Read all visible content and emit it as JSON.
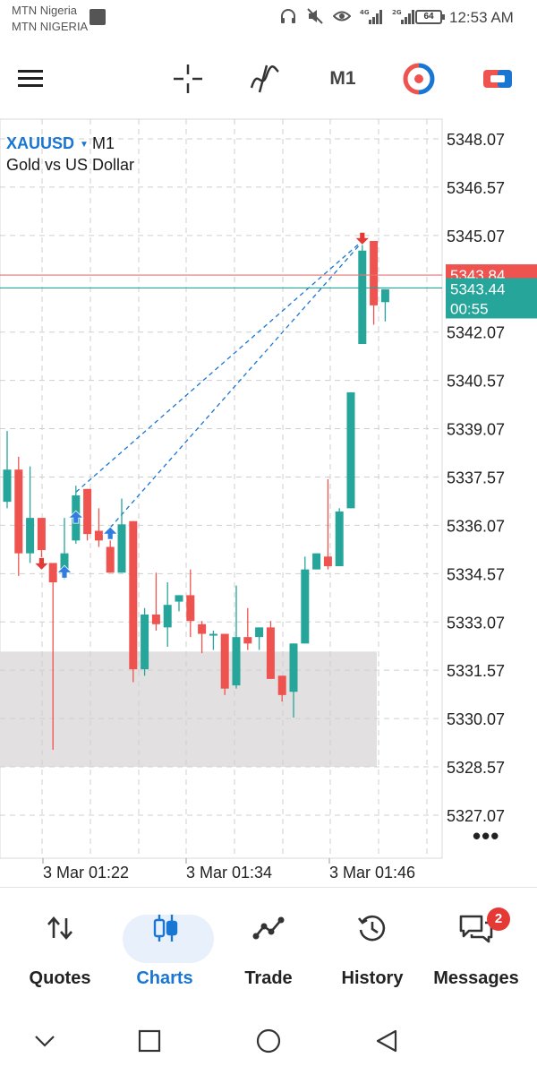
{
  "status_bar": {
    "carrier1": "MTN Nigeria",
    "carrier2": "MTN NIGERIA",
    "net1": "4G",
    "net2": "2G",
    "battery": "64",
    "time": "12:53 AM"
  },
  "toolbar": {
    "timeframe": "M1",
    "icons": [
      "menu-icon",
      "crosshair-icon",
      "indicators-icon",
      "one-click-trading-icon",
      "trade-icon"
    ]
  },
  "chart": {
    "symbol": "XAUUSD",
    "timeframe": "M1",
    "description": "Gold vs US Dollar",
    "price_labels": [
      "5348.07",
      "5346.57",
      "5345.07",
      "5342.07",
      "5340.57",
      "5339.07",
      "5337.57",
      "5336.07",
      "5334.57",
      "5333.07",
      "5331.57",
      "5330.07",
      "5328.57",
      "5327.07"
    ],
    "ask_price": "5343.84",
    "bid_price": "5343.44",
    "bar_countdown": "00:55",
    "time_labels": [
      "3 Mar 01:22",
      "3 Mar 01:34",
      "3 Mar 01:46"
    ],
    "colors": {
      "bull": "#26a69a",
      "bear": "#ef5350",
      "ask_line": "#e57373",
      "bid_line": "#26a69a",
      "zone": "#e2e0e0"
    }
  },
  "chart_data": {
    "type": "candlestick",
    "symbol": "XAUUSD",
    "timeframe": "M1",
    "y_ticks": [
      5348.07,
      5346.57,
      5345.07,
      5342.07,
      5340.57,
      5339.07,
      5337.57,
      5336.07,
      5334.57,
      5333.07,
      5331.57,
      5330.07,
      5328.57,
      5327.07
    ],
    "ylim": [
      5326.5,
      5348.6
    ],
    "x_ticks": [
      "3 Mar 01:22",
      "3 Mar 01:34",
      "3 Mar 01:46"
    ],
    "ask": 5343.84,
    "bid": 5343.44,
    "candles": [
      {
        "o": 5336.8,
        "h": 5339.0,
        "l": 5336.6,
        "c": 5337.8
      },
      {
        "o": 5337.8,
        "h": 5338.2,
        "l": 5334.5,
        "c": 5335.2
      },
      {
        "o": 5335.2,
        "h": 5337.9,
        "l": 5334.9,
        "c": 5336.3
      },
      {
        "o": 5336.3,
        "h": 5336.3,
        "l": 5334.9,
        "c": 5335.3
      },
      {
        "o": 5334.9,
        "h": 5334.9,
        "l": 5329.1,
        "c": 5334.3
      },
      {
        "o": 5334.6,
        "h": 5336.3,
        "l": 5334.4,
        "c": 5335.2
      },
      {
        "o": 5335.6,
        "h": 5337.3,
        "l": 5335.5,
        "c": 5337.0
      },
      {
        "o": 5337.2,
        "h": 5337.2,
        "l": 5335.6,
        "c": 5335.8
      },
      {
        "o": 5335.9,
        "h": 5336.6,
        "l": 5335.4,
        "c": 5335.6
      },
      {
        "o": 5335.4,
        "h": 5335.6,
        "l": 5334.6,
        "c": 5334.6
      },
      {
        "o": 5334.6,
        "h": 5336.9,
        "l": 5334.6,
        "c": 5336.1
      },
      {
        "o": 5336.2,
        "h": 5336.2,
        "l": 5331.2,
        "c": 5331.6
      },
      {
        "o": 5331.6,
        "h": 5333.5,
        "l": 5331.4,
        "c": 5333.3
      },
      {
        "o": 5333.3,
        "h": 5334.6,
        "l": 5332.8,
        "c": 5333.0
      },
      {
        "o": 5332.9,
        "h": 5334.3,
        "l": 5332.3,
        "c": 5333.6
      },
      {
        "o": 5333.7,
        "h": 5333.9,
        "l": 5333.4,
        "c": 5333.9
      },
      {
        "o": 5333.9,
        "h": 5334.7,
        "l": 5332.6,
        "c": 5333.1
      },
      {
        "o": 5333.0,
        "h": 5333.1,
        "l": 5332.1,
        "c": 5332.7
      },
      {
        "o": 5332.7,
        "h": 5332.8,
        "l": 5332.2,
        "c": 5332.7
      },
      {
        "o": 5332.7,
        "h": 5332.7,
        "l": 5330.8,
        "c": 5331.0
      },
      {
        "o": 5331.1,
        "h": 5334.2,
        "l": 5331.0,
        "c": 5332.6
      },
      {
        "o": 5332.6,
        "h": 5333.5,
        "l": 5332.2,
        "c": 5332.4
      },
      {
        "o": 5332.6,
        "h": 5332.9,
        "l": 5332.2,
        "c": 5332.9
      },
      {
        "o": 5332.9,
        "h": 5333.1,
        "l": 5331.3,
        "c": 5331.3
      },
      {
        "o": 5331.4,
        "h": 5331.4,
        "l": 5330.6,
        "c": 5330.8
      },
      {
        "o": 5330.9,
        "h": 5332.4,
        "l": 5330.1,
        "c": 5332.4
      },
      {
        "o": 5332.4,
        "h": 5335.1,
        "l": 5332.4,
        "c": 5334.7
      },
      {
        "o": 5334.7,
        "h": 5335.2,
        "l": 5334.7,
        "c": 5335.2
      },
      {
        "o": 5335.1,
        "h": 5337.5,
        "l": 5334.7,
        "c": 5334.8
      },
      {
        "o": 5334.8,
        "h": 5336.6,
        "l": 5334.8,
        "c": 5336.5
      },
      {
        "o": 5336.6,
        "h": 5340.2,
        "l": 5336.6,
        "c": 5340.2
      },
      {
        "o": 5341.7,
        "h": 5345.1,
        "l": 5341.7,
        "c": 5344.6
      },
      {
        "o": 5344.9,
        "h": 5344.9,
        "l": 5342.3,
        "c": 5342.9
      },
      {
        "o": 5343.0,
        "h": 5343.4,
        "l": 5342.4,
        "c": 5343.4
      }
    ],
    "trade_markers": [
      {
        "candle": 3,
        "side": "sell",
        "price": 5334.9
      },
      {
        "candle": 5,
        "side": "buy",
        "price": 5334.6
      },
      {
        "candle": 6,
        "side": "buy",
        "price": 5336.3
      },
      {
        "candle": 9,
        "side": "buy",
        "price": 5335.8
      },
      {
        "candle": 31,
        "side": "sell",
        "price": 5345.0
      }
    ],
    "trade_lines": [
      {
        "from_candle": 6,
        "from_price": 5337.1,
        "to_candle": 31,
        "to_price": 5345.0
      },
      {
        "from_candle": 9,
        "from_price": 5336.0,
        "to_candle": 31,
        "to_price": 5345.0
      }
    ],
    "zone": {
      "from_price": 5328.57,
      "to_price": 5332.15
    },
    "grid": true
  },
  "bottom_nav": {
    "items": [
      {
        "label": "Quotes",
        "icon": "quotes-icon"
      },
      {
        "label": "Charts",
        "icon": "charts-icon"
      },
      {
        "label": "Trade",
        "icon": "trade-nav-icon"
      },
      {
        "label": "History",
        "icon": "history-icon"
      },
      {
        "label": "Messages",
        "icon": "messages-icon"
      }
    ],
    "messages_badge": "2"
  }
}
